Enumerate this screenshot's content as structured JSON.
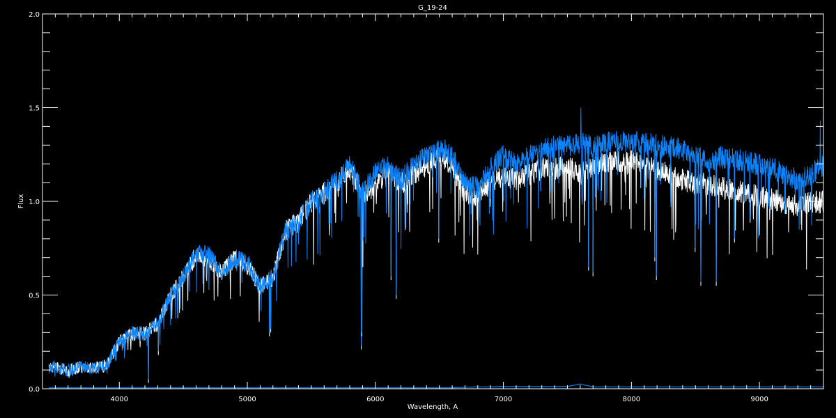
{
  "chart_data": {
    "type": "line",
    "title": "G_19-24",
    "xlabel": "Wavelength, A",
    "ylabel": "Flux",
    "xlim": [
      3400,
      9500
    ],
    "ylim": [
      0.0,
      2.0
    ],
    "x_ticks": [
      "4000",
      "5000",
      "6000",
      "7000",
      "8000",
      "9000"
    ],
    "x_tick_values": [
      4000,
      5000,
      6000,
      7000,
      8000,
      9000
    ],
    "y_ticks": [
      "0.0",
      "0.5",
      "1.0",
      "1.5",
      "2.0"
    ],
    "y_tick_values": [
      0.0,
      0.5,
      1.0,
      1.5,
      2.0
    ],
    "x_minor_step": 100,
    "y_minor_step": 0.1,
    "grid": false,
    "background": "#000000",
    "x": [
      3400,
      3500,
      3600,
      3700,
      3800,
      3900,
      4000,
      4100,
      4200,
      4300,
      4400,
      4500,
      4600,
      4700,
      4800,
      4900,
      5000,
      5100,
      5200,
      5300,
      5400,
      5500,
      5600,
      5700,
      5800,
      5900,
      6000,
      6100,
      6200,
      6300,
      6400,
      6500,
      6600,
      6700,
      6800,
      6900,
      7000,
      7100,
      7200,
      7300,
      7400,
      7500,
      7600,
      7700,
      7800,
      7900,
      8000,
      8100,
      8200,
      8300,
      8400,
      8500,
      8600,
      8700,
      8800,
      8900,
      9000,
      9100,
      9200,
      9300,
      9400,
      9500
    ],
    "series": [
      {
        "color": "#ffffff",
        "values": [
          0.12,
          0.12,
          0.1,
          0.12,
          0.11,
          0.13,
          0.25,
          0.3,
          0.3,
          0.35,
          0.5,
          0.6,
          0.72,
          0.7,
          0.62,
          0.7,
          0.66,
          0.55,
          0.6,
          0.85,
          0.9,
          1.0,
          1.05,
          1.1,
          1.18,
          1.03,
          1.1,
          1.15,
          1.1,
          1.15,
          1.2,
          1.26,
          1.2,
          1.05,
          1.03,
          1.1,
          1.15,
          1.12,
          1.15,
          1.18,
          1.18,
          1.2,
          1.15,
          1.2,
          1.22,
          1.22,
          1.22,
          1.2,
          1.18,
          1.15,
          1.12,
          1.1,
          1.1,
          1.08,
          1.06,
          1.05,
          1.03,
          1.02,
          1.0,
          0.98,
          1.0,
          1.0
        ]
      },
      {
        "color": "#0a84ff",
        "values": [
          0.12,
          0.12,
          0.1,
          0.12,
          0.11,
          0.13,
          0.25,
          0.3,
          0.3,
          0.35,
          0.5,
          0.6,
          0.72,
          0.72,
          0.62,
          0.7,
          0.68,
          0.55,
          0.6,
          0.85,
          0.9,
          1.0,
          1.05,
          1.12,
          1.2,
          1.05,
          1.15,
          1.2,
          1.12,
          1.2,
          1.25,
          1.3,
          1.25,
          1.1,
          1.08,
          1.18,
          1.25,
          1.2,
          1.25,
          1.28,
          1.3,
          1.3,
          1.32,
          1.3,
          1.32,
          1.33,
          1.32,
          1.32,
          1.3,
          1.3,
          1.28,
          1.25,
          1.22,
          1.24,
          1.23,
          1.22,
          1.2,
          1.18,
          1.15,
          1.12,
          1.15,
          1.2
        ]
      },
      {
        "color": "#0a84ff",
        "values": [
          0.005,
          0.005,
          0.005,
          0.005,
          0.005,
          0.005,
          0.005,
          0.005,
          0.005,
          0.005,
          0.005,
          0.005,
          0.005,
          0.005,
          0.005,
          0.005,
          0.005,
          0.005,
          0.005,
          0.005,
          0.005,
          0.005,
          0.005,
          0.005,
          0.005,
          0.005,
          0.005,
          0.005,
          0.005,
          0.005,
          0.005,
          0.005,
          0.005,
          0.008,
          0.01,
          0.01,
          0.012,
          0.012,
          0.012,
          0.012,
          0.012,
          0.012,
          0.025,
          0.01,
          0.01,
          0.01,
          0.01,
          0.01,
          0.01,
          0.01,
          0.01,
          0.01,
          0.01,
          0.01,
          0.01,
          0.01,
          0.01,
          0.01,
          0.01,
          0.01,
          0.01,
          0.01
        ]
      }
    ],
    "absorption_lines": [
      {
        "wavelength": 4227,
        "min_flux": 0.05
      },
      {
        "wavelength": 4305,
        "min_flux": 0.2
      },
      {
        "wavelength": 5172,
        "min_flux": 0.3
      },
      {
        "wavelength": 5183,
        "min_flux": 0.32
      },
      {
        "wavelength": 5890,
        "min_flux": 0.23
      },
      {
        "wavelength": 5896,
        "min_flux": 0.3
      },
      {
        "wavelength": 6122,
        "min_flux": 0.6
      },
      {
        "wavelength": 6162,
        "min_flux": 0.5
      },
      {
        "wavelength": 6495,
        "min_flux": 0.8
      },
      {
        "wavelength": 7665,
        "min_flux": 0.65
      },
      {
        "wavelength": 7699,
        "min_flux": 0.62
      },
      {
        "wavelength": 8183,
        "min_flux": 0.7
      },
      {
        "wavelength": 8195,
        "min_flux": 0.6
      },
      {
        "wavelength": 8498,
        "min_flux": 0.75
      },
      {
        "wavelength": 8542,
        "min_flux": 0.57
      },
      {
        "wavelength": 8662,
        "min_flux": 0.57
      },
      {
        "wavelength": 8806,
        "min_flux": 0.8
      }
    ],
    "emission_peaks": [
      {
        "wavelength": 7605,
        "max_flux": 1.5
      },
      {
        "wavelength": 9475,
        "max_flux": 1.43
      }
    ],
    "gap": [
      5440,
      5455
    ]
  }
}
